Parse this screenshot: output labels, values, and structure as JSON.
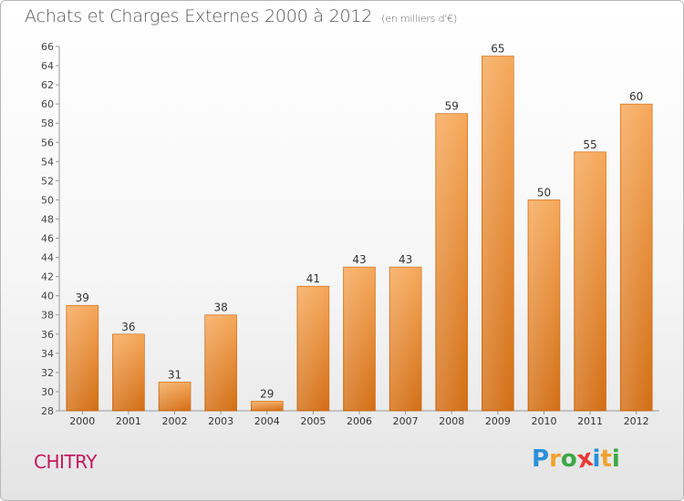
{
  "header": {
    "title": "Achats et Charges Externes 2000 à 2012",
    "unit": "(en milliers d'€)"
  },
  "footer": {
    "commune": "CHITRY",
    "logo_text": "Proxiti",
    "logo_letters": [
      {
        "char": "P",
        "color": "#2b8fd8"
      },
      {
        "char": "r",
        "color": "#f2a12c"
      },
      {
        "char": "o",
        "color": "#3aa845"
      },
      {
        "char": "x",
        "color": "#e53935"
      },
      {
        "char": "i",
        "color": "#2b8fd8"
      },
      {
        "char": "t",
        "color": "#f2a12c"
      },
      {
        "char": "i",
        "color": "#3aa845"
      }
    ]
  },
  "chart_data": {
    "type": "bar",
    "title": "Achats et Charges Externes 2000 à 2012",
    "subtitle": "(en milliers d'€)",
    "categories": [
      "2000",
      "2001",
      "2002",
      "2003",
      "2004",
      "2005",
      "2006",
      "2007",
      "2008",
      "2009",
      "2010",
      "2011",
      "2012"
    ],
    "values": [
      39,
      36,
      31,
      38,
      29,
      41,
      43,
      43,
      59,
      65,
      50,
      55,
      60
    ],
    "data_labels": [
      "39",
      "36",
      "31",
      "38",
      "29",
      "41",
      "43",
      "43",
      "59",
      "65",
      "50",
      "55",
      "60"
    ],
    "ylim": [
      28,
      66
    ],
    "yticks": [
      "28",
      "30",
      "32",
      "34",
      "36",
      "38",
      "40",
      "42",
      "44",
      "46",
      "48",
      "50",
      "52",
      "54",
      "56",
      "58",
      "60",
      "62",
      "64",
      "66"
    ],
    "grid": false,
    "bar_color": "#f0943c"
  }
}
